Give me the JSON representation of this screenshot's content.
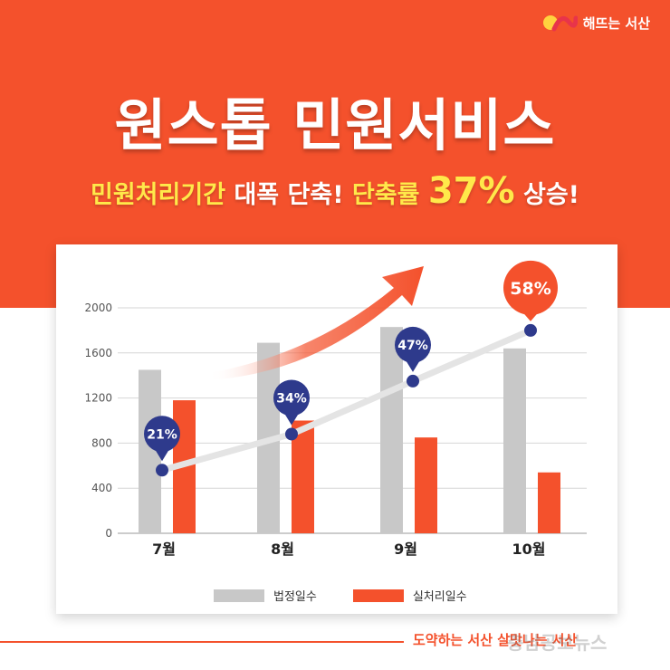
{
  "brand": {
    "logo_text": "해뜨는 서산",
    "logo_icon": "seosan-logo-icon"
  },
  "headline": "원스톱 민원서비스",
  "subline": {
    "part1": "민원처리기간",
    "part2": " 대폭 단축! ",
    "part3": "단축률 ",
    "part4": "37%",
    "part5": " 상승!"
  },
  "colors": {
    "orange": "#f4512c",
    "gray": "#c8c8c8",
    "marker_blue": "#2e3a8c",
    "yellow": "#ffe94a"
  },
  "chart_data": {
    "type": "bar",
    "categories": [
      "7월",
      "8월",
      "9월",
      "10월"
    ],
    "series": [
      {
        "name": "법정일수",
        "color": "#c8c8c8",
        "values": [
          1450,
          1690,
          1830,
          1640
        ]
      },
      {
        "name": "실처리일수",
        "color": "#f4512c",
        "values": [
          1180,
          1000,
          850,
          540
        ]
      }
    ],
    "overlay": {
      "type": "line",
      "name": "단축률",
      "values": [
        21,
        34,
        47,
        58
      ],
      "labels": [
        "21%",
        "34%",
        "47%",
        "58%"
      ],
      "plot_positions": [
        560,
        880,
        1350,
        1800
      ]
    },
    "yticks": [
      0,
      400,
      800,
      1200,
      1600,
      2000
    ],
    "ylim": [
      0,
      2000
    ],
    "grid": true,
    "legend": "bottom-center"
  },
  "footer": {
    "slogan": "도약하는 서산 살맛나는 서산",
    "watermark": "충남공보뉴스"
  }
}
